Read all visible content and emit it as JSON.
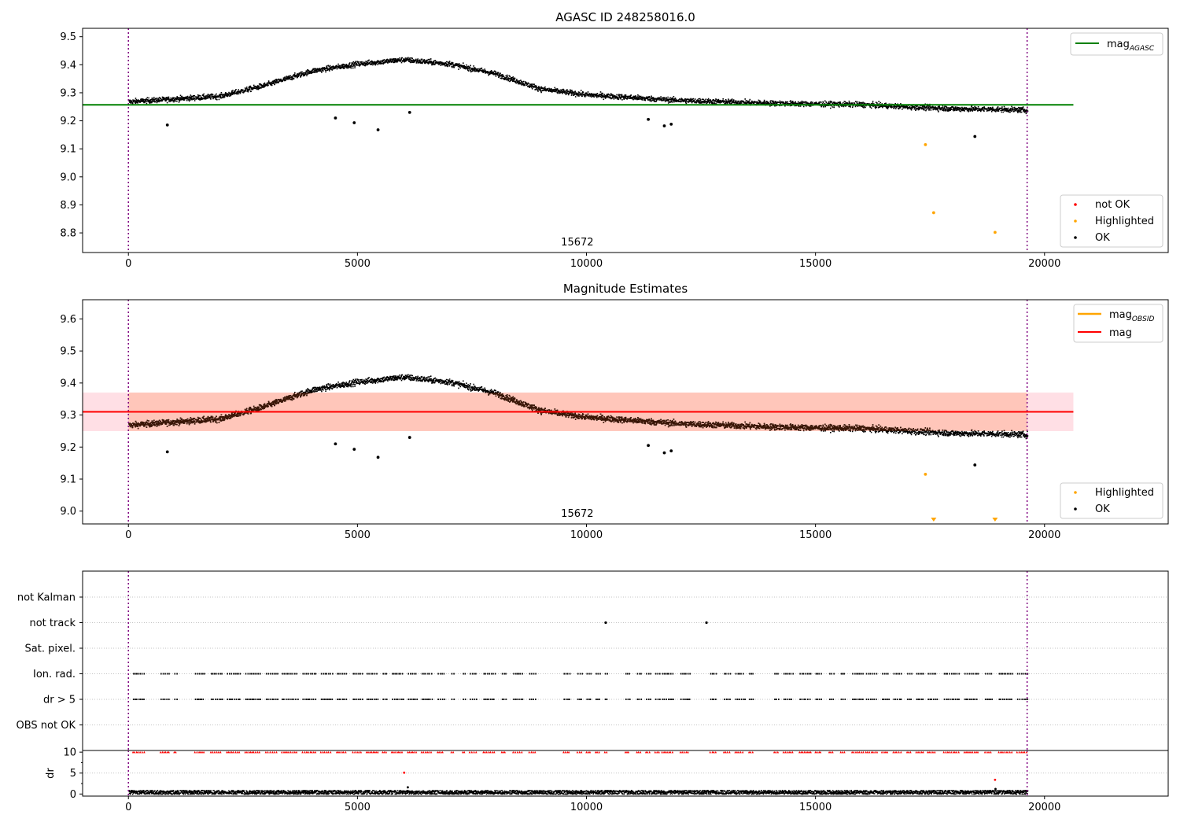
{
  "colors": {
    "ok": "#000000",
    "highlighted": "#ffa500",
    "not_ok": "#ff0000",
    "agasc_line": "#008000",
    "mag_line": "#ff0000",
    "obsid_line": "#ffa500",
    "vline": "#800080",
    "band_pink": "#ffc0cb",
    "band_orange": "#ffa07a",
    "grid": "#b0b0b0"
  },
  "chart_data": [
    {
      "type": "scatter",
      "title": "AGASC ID 248258016.0",
      "xlabel": "",
      "ylabel": "",
      "xlim": [
        -1000,
        22700
      ],
      "ylim": [
        8.73,
        9.53
      ],
      "xticks": [
        0,
        5000,
        10000,
        15000,
        20000
      ],
      "yticks": [
        8.8,
        8.9,
        9.0,
        9.1,
        9.2,
        9.3,
        9.4,
        9.5
      ],
      "grid": false,
      "annotation": {
        "text": "15672",
        "x": 9800
      },
      "vlines": [
        0,
        19620
      ],
      "hline": {
        "name": "mag_AGASC",
        "y": 9.257,
        "x": [
          -1000,
          20630
        ]
      },
      "trend": {
        "x": [
          0,
          1000,
          2000,
          3000,
          4000,
          5000,
          6000,
          7000,
          8000,
          9000,
          10000,
          11000,
          12000,
          13000,
          14000,
          15000,
          16000,
          17000,
          18000,
          19000,
          19620
        ],
        "y": [
          9.27,
          9.28,
          9.29,
          9.33,
          9.38,
          9.405,
          9.42,
          9.405,
          9.37,
          9.315,
          9.295,
          9.285,
          9.275,
          9.27,
          9.265,
          9.262,
          9.26,
          9.252,
          9.245,
          9.243,
          9.24
        ]
      },
      "series": [
        {
          "name": "not OK",
          "points": []
        },
        {
          "name": "Highlighted",
          "points": [
            [
              17400,
              9.115
            ],
            [
              17580,
              8.872
            ],
            [
              18920,
              8.802
            ]
          ]
        },
        {
          "name": "OK",
          "points": [
            [
              850,
              9.185
            ],
            [
              4520,
              9.21
            ],
            [
              4930,
              9.193
            ],
            [
              5450,
              9.168
            ],
            [
              6140,
              9.23
            ],
            [
              11350,
              9.205
            ],
            [
              11700,
              9.182
            ],
            [
              11850,
              9.188
            ],
            [
              18480,
              9.144
            ]
          ]
        }
      ],
      "legend_lines": [
        {
          "label": "mag",
          "sub": "AGASC"
        }
      ],
      "legend_points": [
        "not OK",
        "Highlighted",
        "OK"
      ]
    },
    {
      "type": "scatter",
      "title": "Magnitude Estimates",
      "xlabel": "",
      "ylabel": "",
      "xlim": [
        -1000,
        22700
      ],
      "ylim": [
        8.96,
        9.66
      ],
      "xticks": [
        0,
        5000,
        10000,
        15000,
        20000
      ],
      "yticks": [
        9.0,
        9.1,
        9.2,
        9.3,
        9.4,
        9.5,
        9.6
      ],
      "grid": false,
      "annotation": {
        "text": "15672",
        "x": 9800
      },
      "vlines": [
        0,
        19620
      ],
      "hline": {
        "name": "mag",
        "y": 9.31,
        "x": [
          -1000,
          20630
        ]
      },
      "band": {
        "y": [
          9.25,
          9.37
        ],
        "x": [
          -1000,
          20630
        ]
      },
      "trend": {
        "x": [
          0,
          1000,
          2000,
          3000,
          4000,
          5000,
          6000,
          7000,
          8000,
          9000,
          10000,
          11000,
          12000,
          13000,
          14000,
          15000,
          16000,
          17000,
          18000,
          19000,
          19620
        ],
        "y": [
          9.27,
          9.28,
          9.29,
          9.33,
          9.38,
          9.405,
          9.42,
          9.405,
          9.37,
          9.315,
          9.295,
          9.285,
          9.275,
          9.27,
          9.265,
          9.262,
          9.26,
          9.252,
          9.245,
          9.243,
          9.24
        ]
      },
      "series": [
        {
          "name": "Highlighted",
          "points": [
            [
              17400,
              9.115
            ]
          ],
          "offscale_x": [
            17580,
            18920
          ]
        },
        {
          "name": "OK",
          "points": [
            [
              850,
              9.185
            ],
            [
              4520,
              9.21
            ],
            [
              4930,
              9.193
            ],
            [
              5450,
              9.168
            ],
            [
              6140,
              9.23
            ],
            [
              11350,
              9.205
            ],
            [
              11700,
              9.182
            ],
            [
              11850,
              9.188
            ],
            [
              18480,
              9.144
            ]
          ]
        }
      ],
      "legend_lines": [
        {
          "label": "mag",
          "sub": "OBSID"
        },
        {
          "label": "mag",
          "sub": ""
        }
      ],
      "legend_points": [
        "Highlighted",
        "OK"
      ]
    },
    {
      "type": "scatter",
      "title": "",
      "xlim": [
        -1000,
        22700
      ],
      "categories": [
        "not Kalman",
        "not track",
        "Sat. pixel.",
        "Ion. rad.",
        "dr > 5",
        "OBS not OK"
      ],
      "grid": true,
      "vlines": [
        0,
        19620
      ],
      "not_track_x": [
        10420,
        12620
      ],
      "flag_segments": [
        [
          100,
          350
        ],
        [
          700,
          900
        ],
        [
          1000,
          1070
        ],
        [
          1450,
          1650
        ],
        [
          1800,
          2050
        ],
        [
          2150,
          2450
        ],
        [
          2550,
          2900
        ],
        [
          3000,
          3250
        ],
        [
          3350,
          3700
        ],
        [
          3800,
          4100
        ],
        [
          4200,
          4450
        ],
        [
          4550,
          4750
        ],
        [
          4900,
          5100
        ],
        [
          5200,
          5450
        ],
        [
          5550,
          5650
        ],
        [
          5750,
          6000
        ],
        [
          6100,
          6300
        ],
        [
          6400,
          6650
        ],
        [
          6750,
          6900
        ],
        [
          7050,
          7100
        ],
        [
          7300,
          7350
        ],
        [
          7450,
          7600
        ],
        [
          7750,
          8000
        ],
        [
          8150,
          8250
        ],
        [
          8400,
          8600
        ],
        [
          8750,
          8900
        ],
        [
          9500,
          9650
        ],
        [
          9800,
          9900
        ],
        [
          10000,
          10100
        ],
        [
          10200,
          10300
        ],
        [
          10400,
          10450
        ],
        [
          10850,
          10950
        ],
        [
          11100,
          11200
        ],
        [
          11300,
          11400
        ],
        [
          11500,
          11600
        ],
        [
          11650,
          11900
        ],
        [
          12050,
          12250
        ],
        [
          12700,
          12850
        ],
        [
          13000,
          13150
        ],
        [
          13250,
          13450
        ],
        [
          13550,
          13650
        ],
        [
          14100,
          14200
        ],
        [
          14300,
          14500
        ],
        [
          14650,
          14900
        ],
        [
          15000,
          15150
        ],
        [
          15300,
          15400
        ],
        [
          15550,
          15650
        ],
        [
          15800,
          16050
        ],
        [
          16100,
          16350
        ],
        [
          16450,
          16600
        ],
        [
          16700,
          16900
        ],
        [
          17000,
          17100
        ],
        [
          17200,
          17350
        ],
        [
          17450,
          17650
        ],
        [
          17800,
          18150
        ],
        [
          18250,
          18550
        ],
        [
          18700,
          18850
        ],
        [
          19000,
          19300
        ],
        [
          19400,
          19620
        ]
      ]
    },
    {
      "type": "scatter",
      "title": "",
      "xlabel": "",
      "ylabel": "dr",
      "xlim": [
        -1000,
        22700
      ],
      "ylim": [
        -0.5,
        10.4
      ],
      "xticks": [
        0,
        5000,
        10000,
        15000,
        20000
      ],
      "yticks": [
        0,
        5,
        10
      ],
      "grid": true,
      "vlines": [
        0,
        19620
      ],
      "clipped_value": 10,
      "outliers": [
        [
          6020,
          5.1
        ],
        [
          6100,
          1.6
        ],
        [
          18920,
          3.4
        ],
        [
          18930,
          1.2
        ]
      ],
      "baseline": {
        "min": 0.1,
        "max": 1.0
      }
    }
  ]
}
